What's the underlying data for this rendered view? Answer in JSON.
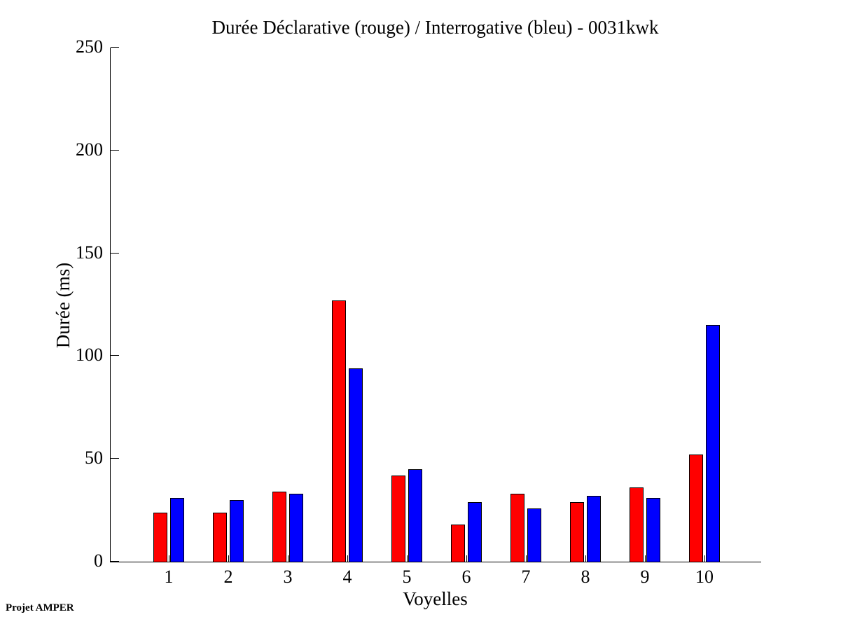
{
  "title": "Durée Déclarative (rouge) / Interrogative (bleu) - 0031kwk",
  "footer": "Projet AMPER",
  "chart_data": {
    "type": "bar",
    "title": "Durée Déclarative (rouge) / Interrogative (bleu) - 0031kwk",
    "xlabel": "Voyelles",
    "ylabel": "Durée (ms)",
    "categories": [
      "1",
      "2",
      "3",
      "4",
      "5",
      "6",
      "7",
      "8",
      "9",
      "10"
    ],
    "series": [
      {
        "name": "Déclarative",
        "color": "#FF0000",
        "values": [
          24,
          24,
          34,
          127,
          42,
          18,
          33,
          29,
          36,
          52
        ]
      },
      {
        "name": "Interrogative",
        "color": "#0000FF",
        "values": [
          31,
          30,
          33,
          94,
          45,
          29,
          26,
          32,
          31,
          115
        ]
      }
    ],
    "ylim": [
      0,
      250
    ],
    "yticks": [
      0,
      50,
      100,
      150,
      200,
      250
    ],
    "grid": false,
    "legend_position": "none",
    "bar_edge_color": "#000000",
    "background_color": "#FFFFFF"
  }
}
